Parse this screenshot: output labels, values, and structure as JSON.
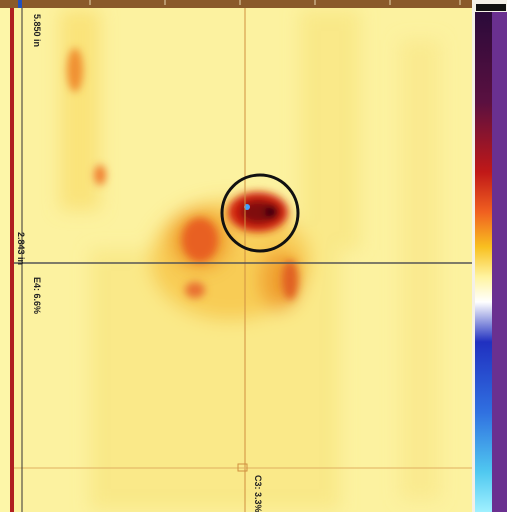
{
  "labels": {
    "depth_top": "5.850 in",
    "depth_left": "2.843 in",
    "cursor_e": "E4: 6.6%",
    "cursor_c": "C3: 3.3%"
  }
}
